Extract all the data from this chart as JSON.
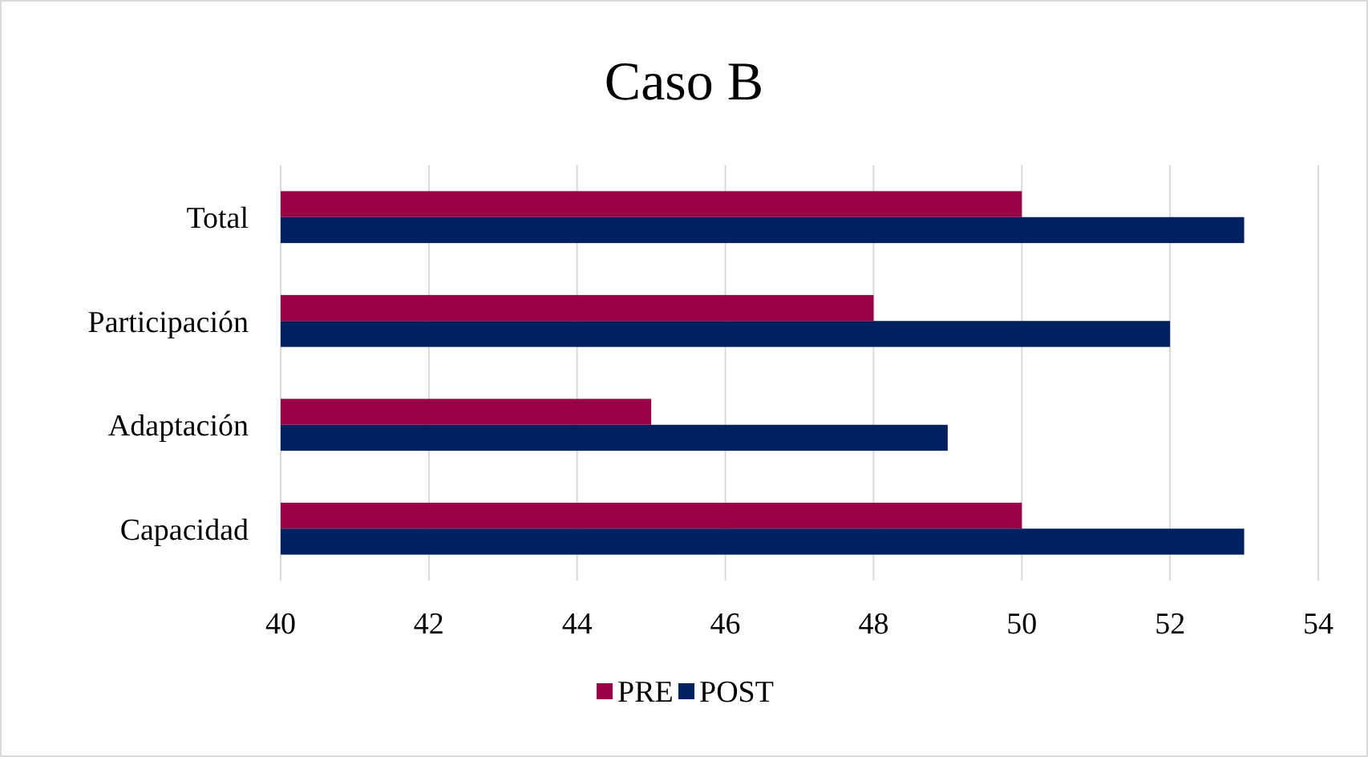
{
  "chart_data": {
    "type": "bar",
    "orientation": "horizontal",
    "title": "Caso B",
    "categories": [
      "Total",
      "Participación",
      "Adaptación",
      "Capacidad"
    ],
    "series": [
      {
        "name": "PRE",
        "color": "#990048",
        "values": [
          50,
          48,
          45,
          50
        ]
      },
      {
        "name": "POST",
        "color": "#002060",
        "values": [
          53,
          52,
          49,
          53
        ]
      }
    ],
    "xlim": [
      40,
      54
    ],
    "xticks": [
      40,
      42,
      44,
      46,
      48,
      50,
      52,
      54
    ],
    "grid": "x",
    "legend": "bottom"
  }
}
